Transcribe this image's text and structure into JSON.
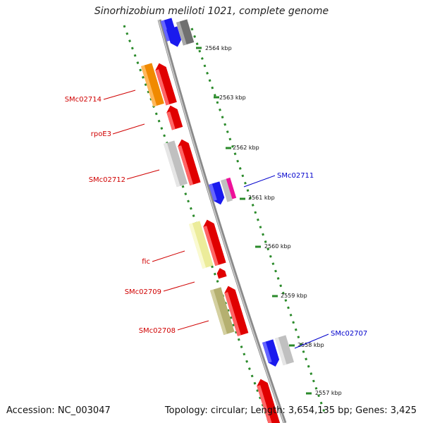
{
  "title": "Sinorhizobium meliloti 1021, complete genome",
  "footer": {
    "accession": "Accession: NC_003047",
    "summary": "Topology: circular; Length: 3,654,135 bp; Genes: 3,425"
  },
  "scale_labels": [
    "2564 kbp",
    "2563 kbp",
    "2562 kbp",
    "2561 kbp",
    "2560 kbp",
    "2559 kbp",
    "2558 kbp",
    "2557 kbp"
  ],
  "gene_labels": [
    {
      "name": "SMc02714",
      "color": "#d00000"
    },
    {
      "name": "rpoE3",
      "color": "#d00000"
    },
    {
      "name": "SMc02712",
      "color": "#d00000"
    },
    {
      "name": "SMc02711",
      "color": "#0000cc"
    },
    {
      "name": "fic",
      "color": "#d00000"
    },
    {
      "name": "SMc02709",
      "color": "#d00000"
    },
    {
      "name": "SMc02708",
      "color": "#d00000"
    },
    {
      "name": "SMc02707",
      "color": "#0000cc"
    }
  ],
  "colors": {
    "backbone": "#8a8a8a",
    "dash": "#2a8a2a",
    "red": "#e00000",
    "blue": "#1a1aee",
    "orange": "#f08a00",
    "grey": "#c0c0c0",
    "darkgrey": "#707070",
    "yellow": "#ecec9a",
    "olive": "#b5b070",
    "magenta": "#ee1199"
  }
}
